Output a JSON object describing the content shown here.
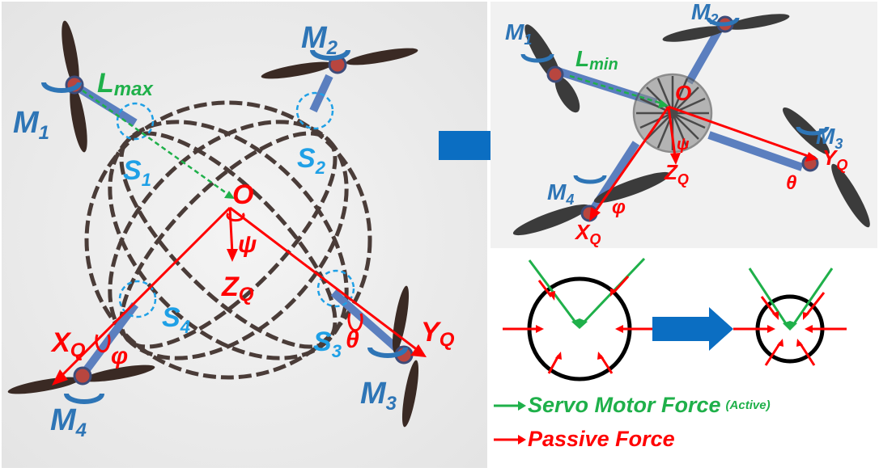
{
  "left": {
    "motors": [
      "M",
      "M",
      "M",
      "M"
    ],
    "motor_subs": [
      "1",
      "2",
      "3",
      "4"
    ],
    "sensors": [
      "S",
      "S",
      "S",
      "S"
    ],
    "sensor_subs": [
      "1",
      "2",
      "3",
      "4"
    ],
    "lmax_main": "L",
    "lmax_sub": "max",
    "origin": "O",
    "psi": "ψ",
    "theta": "θ",
    "phi": "φ",
    "xq_main": "X",
    "yq_main": "Y",
    "zq_main": "Z",
    "q_sub": "Q"
  },
  "right": {
    "motors": [
      "M",
      "M",
      "M",
      "M"
    ],
    "motor_subs": [
      "1",
      "2",
      "3",
      "4"
    ],
    "lmin_main": "L",
    "lmin_sub": "min",
    "origin": "O",
    "psi": "ψ",
    "theta": "θ",
    "phi": "φ",
    "xq_main": "X",
    "yq_main": "Y",
    "zq_main": "Z",
    "q_sub": "Q"
  },
  "legend": {
    "servo_label": "Servo Motor Force",
    "servo_note": "(Active)",
    "passive_label": "Passive Force"
  },
  "colors": {
    "motor_label": "#2e75b6",
    "sensor_label": "#1fa0e6",
    "axis_red": "#ff0000",
    "servo_green": "#1fb04a",
    "transition_arrow": "#0b6ec2"
  }
}
